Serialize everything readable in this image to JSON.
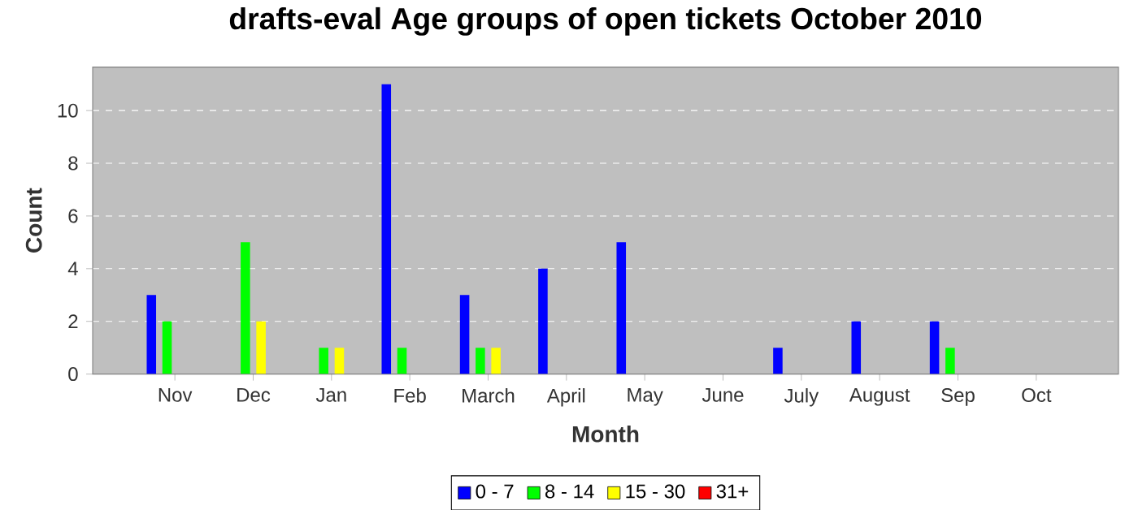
{
  "chart_data": {
    "type": "bar",
    "title": "drafts-eval Age groups of open tickets October 2010",
    "xlabel": "Month",
    "ylabel": "Count",
    "categories": [
      "Nov",
      "Dec",
      "Jan",
      "Feb",
      "March",
      "April",
      "May",
      "June",
      "July",
      "August",
      "Sep",
      "Oct"
    ],
    "series": [
      {
        "name": "0 - 7",
        "color": "#0000ff",
        "values": [
          3,
          0,
          0,
          11,
          3,
          4,
          5,
          0,
          1,
          2,
          2,
          0
        ]
      },
      {
        "name": "8 - 14",
        "color": "#00ff00",
        "values": [
          2,
          5,
          1,
          1,
          1,
          0,
          0,
          0,
          0,
          0,
          1,
          0
        ]
      },
      {
        "name": "15 - 30",
        "color": "#ffff00",
        "values": [
          0,
          2,
          1,
          0,
          1,
          0,
          0,
          0,
          0,
          0,
          0,
          0
        ]
      },
      {
        "name": "31+",
        "color": "#ff0000",
        "values": [
          0,
          0,
          0,
          0,
          0,
          0,
          0,
          0,
          0,
          0,
          0,
          0
        ]
      }
    ],
    "ylim": [
      0,
      11.65
    ],
    "yticks": [
      0,
      2,
      4,
      6,
      8,
      10
    ],
    "grid": "y",
    "legend": "bottom"
  }
}
